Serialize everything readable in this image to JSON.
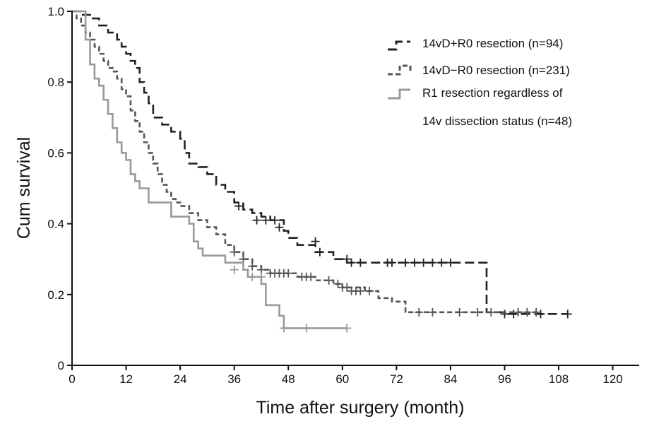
{
  "chart_data": {
    "type": "line",
    "xlabel": "Time after surgery  (month)",
    "ylabel": "Cum survival",
    "xlim": [
      0,
      126
    ],
    "ylim": [
      0,
      1.0
    ],
    "x_ticks": [
      "0",
      "12",
      "24",
      "36",
      "48",
      "60",
      "72",
      "84",
      "96",
      "108",
      "120"
    ],
    "y_ticks": [
      "0",
      "0.2",
      "0.4",
      "0.6",
      "0.8",
      "1.0"
    ],
    "grid": false,
    "legend_position": "top-right",
    "series": [
      {
        "name": "14vD+R0 resection (n=94)",
        "color": "#222222",
        "dash": "long-dash",
        "steps": [
          [
            0,
            1.0
          ],
          [
            2,
            0.99
          ],
          [
            4,
            0.98
          ],
          [
            6,
            0.96
          ],
          [
            8,
            0.94
          ],
          [
            10,
            0.92
          ],
          [
            11,
            0.9
          ],
          [
            12,
            0.88
          ],
          [
            13,
            0.86
          ],
          [
            14,
            0.84
          ],
          [
            15,
            0.8
          ],
          [
            16,
            0.77
          ],
          [
            17,
            0.74
          ],
          [
            18,
            0.7
          ],
          [
            20,
            0.68
          ],
          [
            22,
            0.66
          ],
          [
            24,
            0.64
          ],
          [
            25,
            0.6
          ],
          [
            26,
            0.57
          ],
          [
            28,
            0.56
          ],
          [
            30,
            0.54
          ],
          [
            32,
            0.51
          ],
          [
            34,
            0.49
          ],
          [
            36,
            0.46
          ],
          [
            38,
            0.44
          ],
          [
            40,
            0.43
          ],
          [
            42,
            0.42
          ],
          [
            44,
            0.41
          ],
          [
            47,
            0.38
          ],
          [
            48,
            0.36
          ],
          [
            50,
            0.34
          ],
          [
            54,
            0.32
          ],
          [
            58,
            0.3
          ],
          [
            61,
            0.29
          ],
          [
            92,
            0.15
          ],
          [
            96,
            0.145
          ]
        ],
        "end_x": 110,
        "censored": [
          [
            37,
            0.45
          ],
          [
            41,
            0.41
          ],
          [
            43,
            0.41
          ],
          [
            45,
            0.41
          ],
          [
            46,
            0.39
          ],
          [
            54,
            0.35
          ],
          [
            55,
            0.32
          ],
          [
            61,
            0.3
          ],
          [
            62,
            0.29
          ],
          [
            64,
            0.29
          ],
          [
            70,
            0.29
          ],
          [
            71,
            0.29
          ],
          [
            74,
            0.29
          ],
          [
            76,
            0.29
          ],
          [
            78,
            0.29
          ],
          [
            80,
            0.29
          ],
          [
            82,
            0.29
          ],
          [
            84,
            0.29
          ],
          [
            96,
            0.145
          ],
          [
            98,
            0.145
          ],
          [
            104,
            0.145
          ],
          [
            110,
            0.145
          ]
        ]
      },
      {
        "name": "14vD−R0 resection (n=231)",
        "color": "#555555",
        "dash": "short-dash",
        "steps": [
          [
            0,
            1.0
          ],
          [
            1,
            0.98
          ],
          [
            2,
            0.96
          ],
          [
            3,
            0.94
          ],
          [
            4,
            0.92
          ],
          [
            5,
            0.9
          ],
          [
            6,
            0.88
          ],
          [
            7,
            0.86
          ],
          [
            8,
            0.84
          ],
          [
            9,
            0.83
          ],
          [
            10,
            0.81
          ],
          [
            11,
            0.78
          ],
          [
            12,
            0.76
          ],
          [
            13,
            0.72
          ],
          [
            14,
            0.69
          ],
          [
            15,
            0.66
          ],
          [
            16,
            0.63
          ],
          [
            17,
            0.6
          ],
          [
            18,
            0.57
          ],
          [
            19,
            0.54
          ],
          [
            20,
            0.51
          ],
          [
            21,
            0.49
          ],
          [
            22,
            0.47
          ],
          [
            23,
            0.46
          ],
          [
            24,
            0.45
          ],
          [
            26,
            0.43
          ],
          [
            28,
            0.41
          ],
          [
            30,
            0.39
          ],
          [
            32,
            0.37
          ],
          [
            34,
            0.34
          ],
          [
            36,
            0.32
          ],
          [
            38,
            0.3
          ],
          [
            40,
            0.28
          ],
          [
            42,
            0.27
          ],
          [
            44,
            0.26
          ],
          [
            50,
            0.25
          ],
          [
            54,
            0.24
          ],
          [
            58,
            0.23
          ],
          [
            60,
            0.22
          ],
          [
            65,
            0.21
          ],
          [
            68,
            0.19
          ],
          [
            71,
            0.18
          ],
          [
            74,
            0.15
          ],
          [
            96,
            0.15
          ]
        ],
        "end_x": 104,
        "censored": [
          [
            36,
            0.32
          ],
          [
            38,
            0.3
          ],
          [
            40,
            0.28
          ],
          [
            42,
            0.27
          ],
          [
            44,
            0.26
          ],
          [
            45,
            0.26
          ],
          [
            46,
            0.26
          ],
          [
            47,
            0.26
          ],
          [
            48,
            0.26
          ],
          [
            51,
            0.25
          ],
          [
            52,
            0.25
          ],
          [
            53,
            0.25
          ],
          [
            57,
            0.24
          ],
          [
            59,
            0.23
          ],
          [
            60,
            0.22
          ],
          [
            61,
            0.22
          ],
          [
            62,
            0.21
          ],
          [
            63,
            0.21
          ],
          [
            64,
            0.21
          ],
          [
            66,
            0.21
          ],
          [
            77,
            0.15
          ],
          [
            80,
            0.15
          ],
          [
            86,
            0.15
          ],
          [
            90,
            0.15
          ],
          [
            93,
            0.15
          ],
          [
            99,
            0.15
          ],
          [
            101,
            0.15
          ],
          [
            103,
            0.15
          ]
        ]
      },
      {
        "name": "R1 resection regardless of",
        "name_line2": "14v dissection status (n=48)",
        "color": "#999999",
        "dash": "solid",
        "steps": [
          [
            0,
            1.0
          ],
          [
            3,
            0.92
          ],
          [
            4,
            0.85
          ],
          [
            5,
            0.81
          ],
          [
            6,
            0.79
          ],
          [
            7,
            0.75
          ],
          [
            8,
            0.71
          ],
          [
            9,
            0.67
          ],
          [
            10,
            0.63
          ],
          [
            11,
            0.6
          ],
          [
            12,
            0.58
          ],
          [
            13,
            0.54
          ],
          [
            14,
            0.52
          ],
          [
            15,
            0.5
          ],
          [
            17,
            0.46
          ],
          [
            22,
            0.42
          ],
          [
            26,
            0.4
          ],
          [
            27,
            0.35
          ],
          [
            28,
            0.33
          ],
          [
            29,
            0.31
          ],
          [
            34,
            0.29
          ],
          [
            38,
            0.27
          ],
          [
            39,
            0.25
          ],
          [
            42,
            0.23
          ],
          [
            43,
            0.17
          ],
          [
            46,
            0.14
          ],
          [
            47,
            0.105
          ]
        ],
        "end_x": 61,
        "censored": [
          [
            36,
            0.27
          ],
          [
            40,
            0.25
          ],
          [
            42,
            0.25
          ],
          [
            47,
            0.105
          ],
          [
            52,
            0.105
          ],
          [
            61,
            0.105
          ]
        ]
      }
    ]
  }
}
